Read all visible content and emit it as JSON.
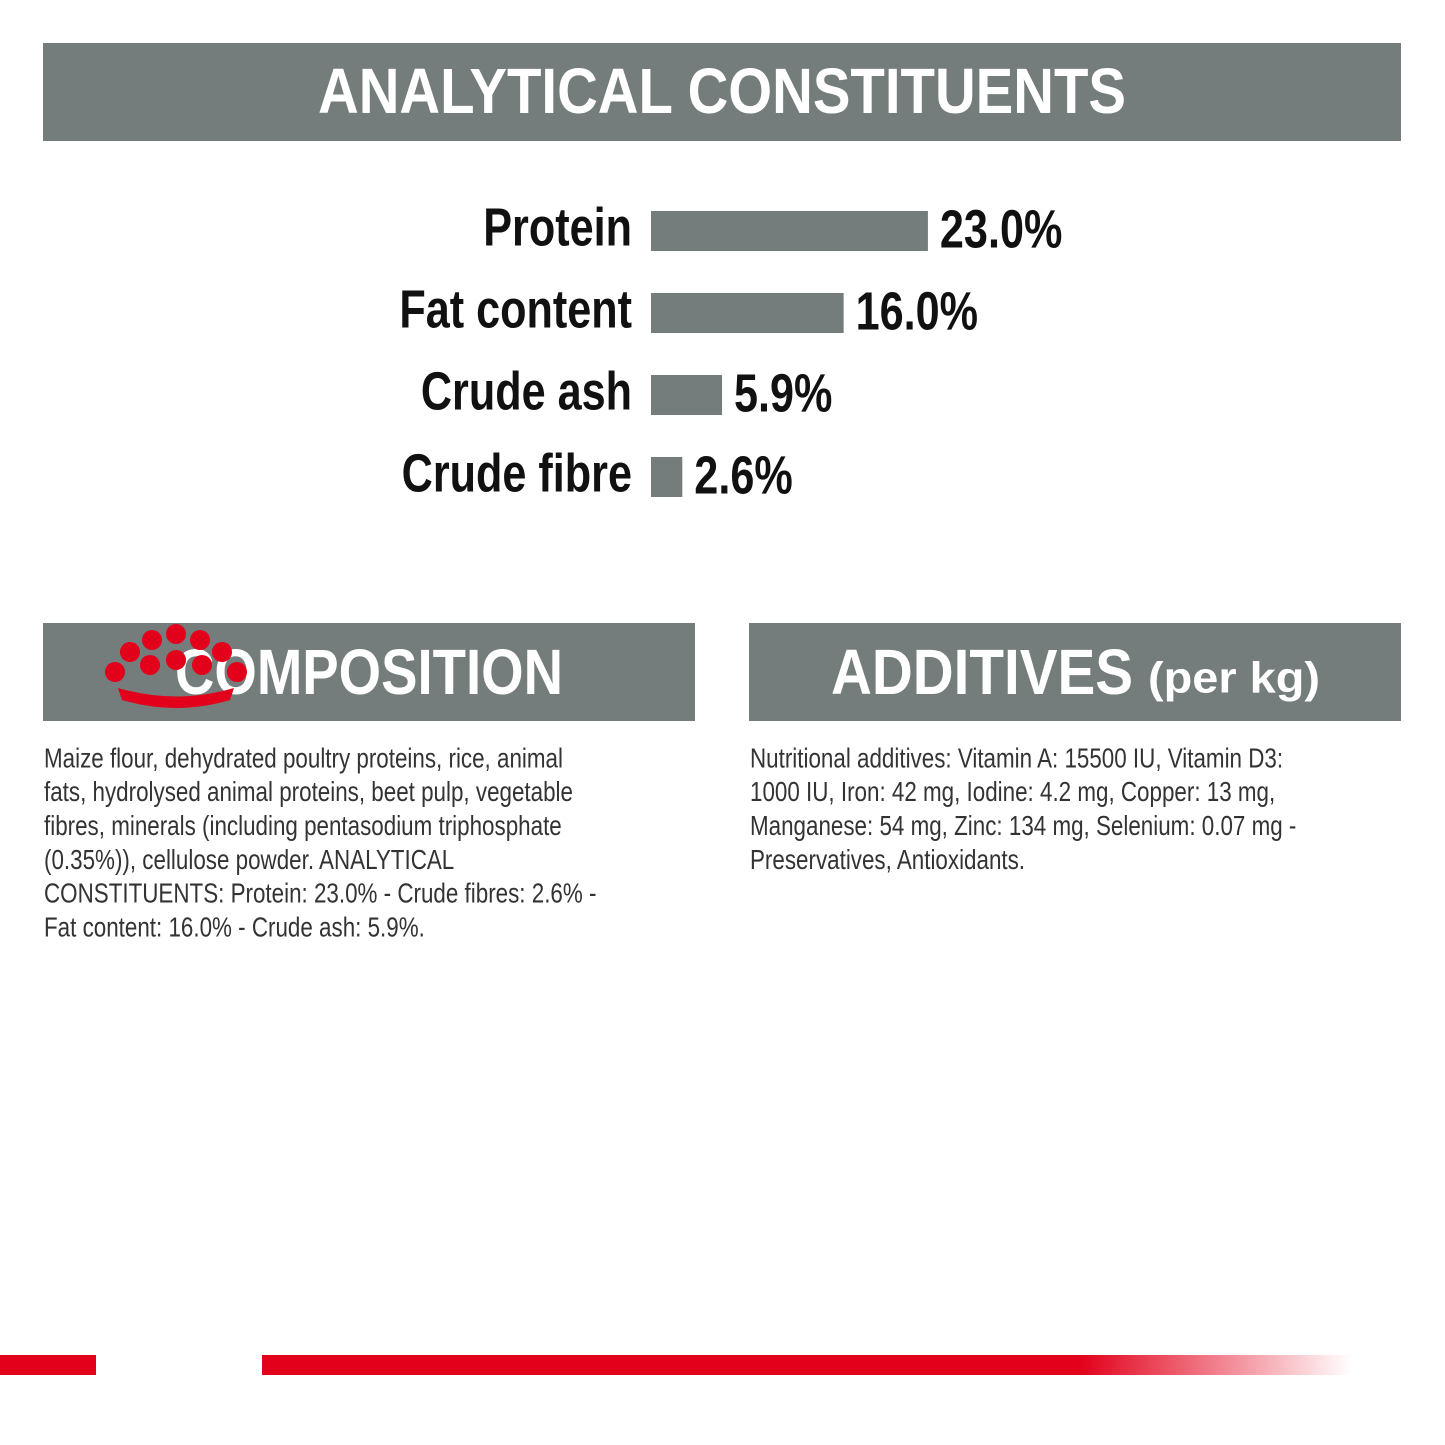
{
  "header": {
    "title": "ANALYTICAL CONSTITUENTS"
  },
  "chart_data": {
    "type": "bar",
    "orientation": "horizontal",
    "color": "#747c7c",
    "categories": [
      "Protein",
      "Fat content",
      "Crude ash",
      "Crude fibre"
    ],
    "values": [
      23.0,
      16.0,
      5.9,
      2.6
    ],
    "value_labels": [
      "23.0%",
      "16.0%",
      "5.9%",
      "2.6%"
    ]
  },
  "composition": {
    "title": "COMPOSITION",
    "lines": [
      "Maize flour, dehydrated poultry proteins, rice, animal",
      "fats, hydrolysed animal proteins, beet pulp, vegetable",
      "fibres, minerals (including pentasodium triphosphate",
      "(0.35%)), cellulose powder. ANALYTICAL",
      "CONSTITUENTS: Protein: 23.0% - Crude fibres: 2.6% -",
      "Fat content: 16.0% - Crude ash: 5.9%."
    ]
  },
  "additives": {
    "title": "ADDITIVES",
    "subtitle": "(per kg)",
    "lines": [
      "Nutritional additives: Vitamin A: 15500 IU, Vitamin D3:",
      "1000 IU, Iron: 42 mg, Iodine: 4.2 mg, Copper: 13 mg,",
      "Manganese: 54 mg, Zinc: 134 mg, Selenium: 0.07 mg -",
      "Preservatives, Antioxidants."
    ]
  }
}
